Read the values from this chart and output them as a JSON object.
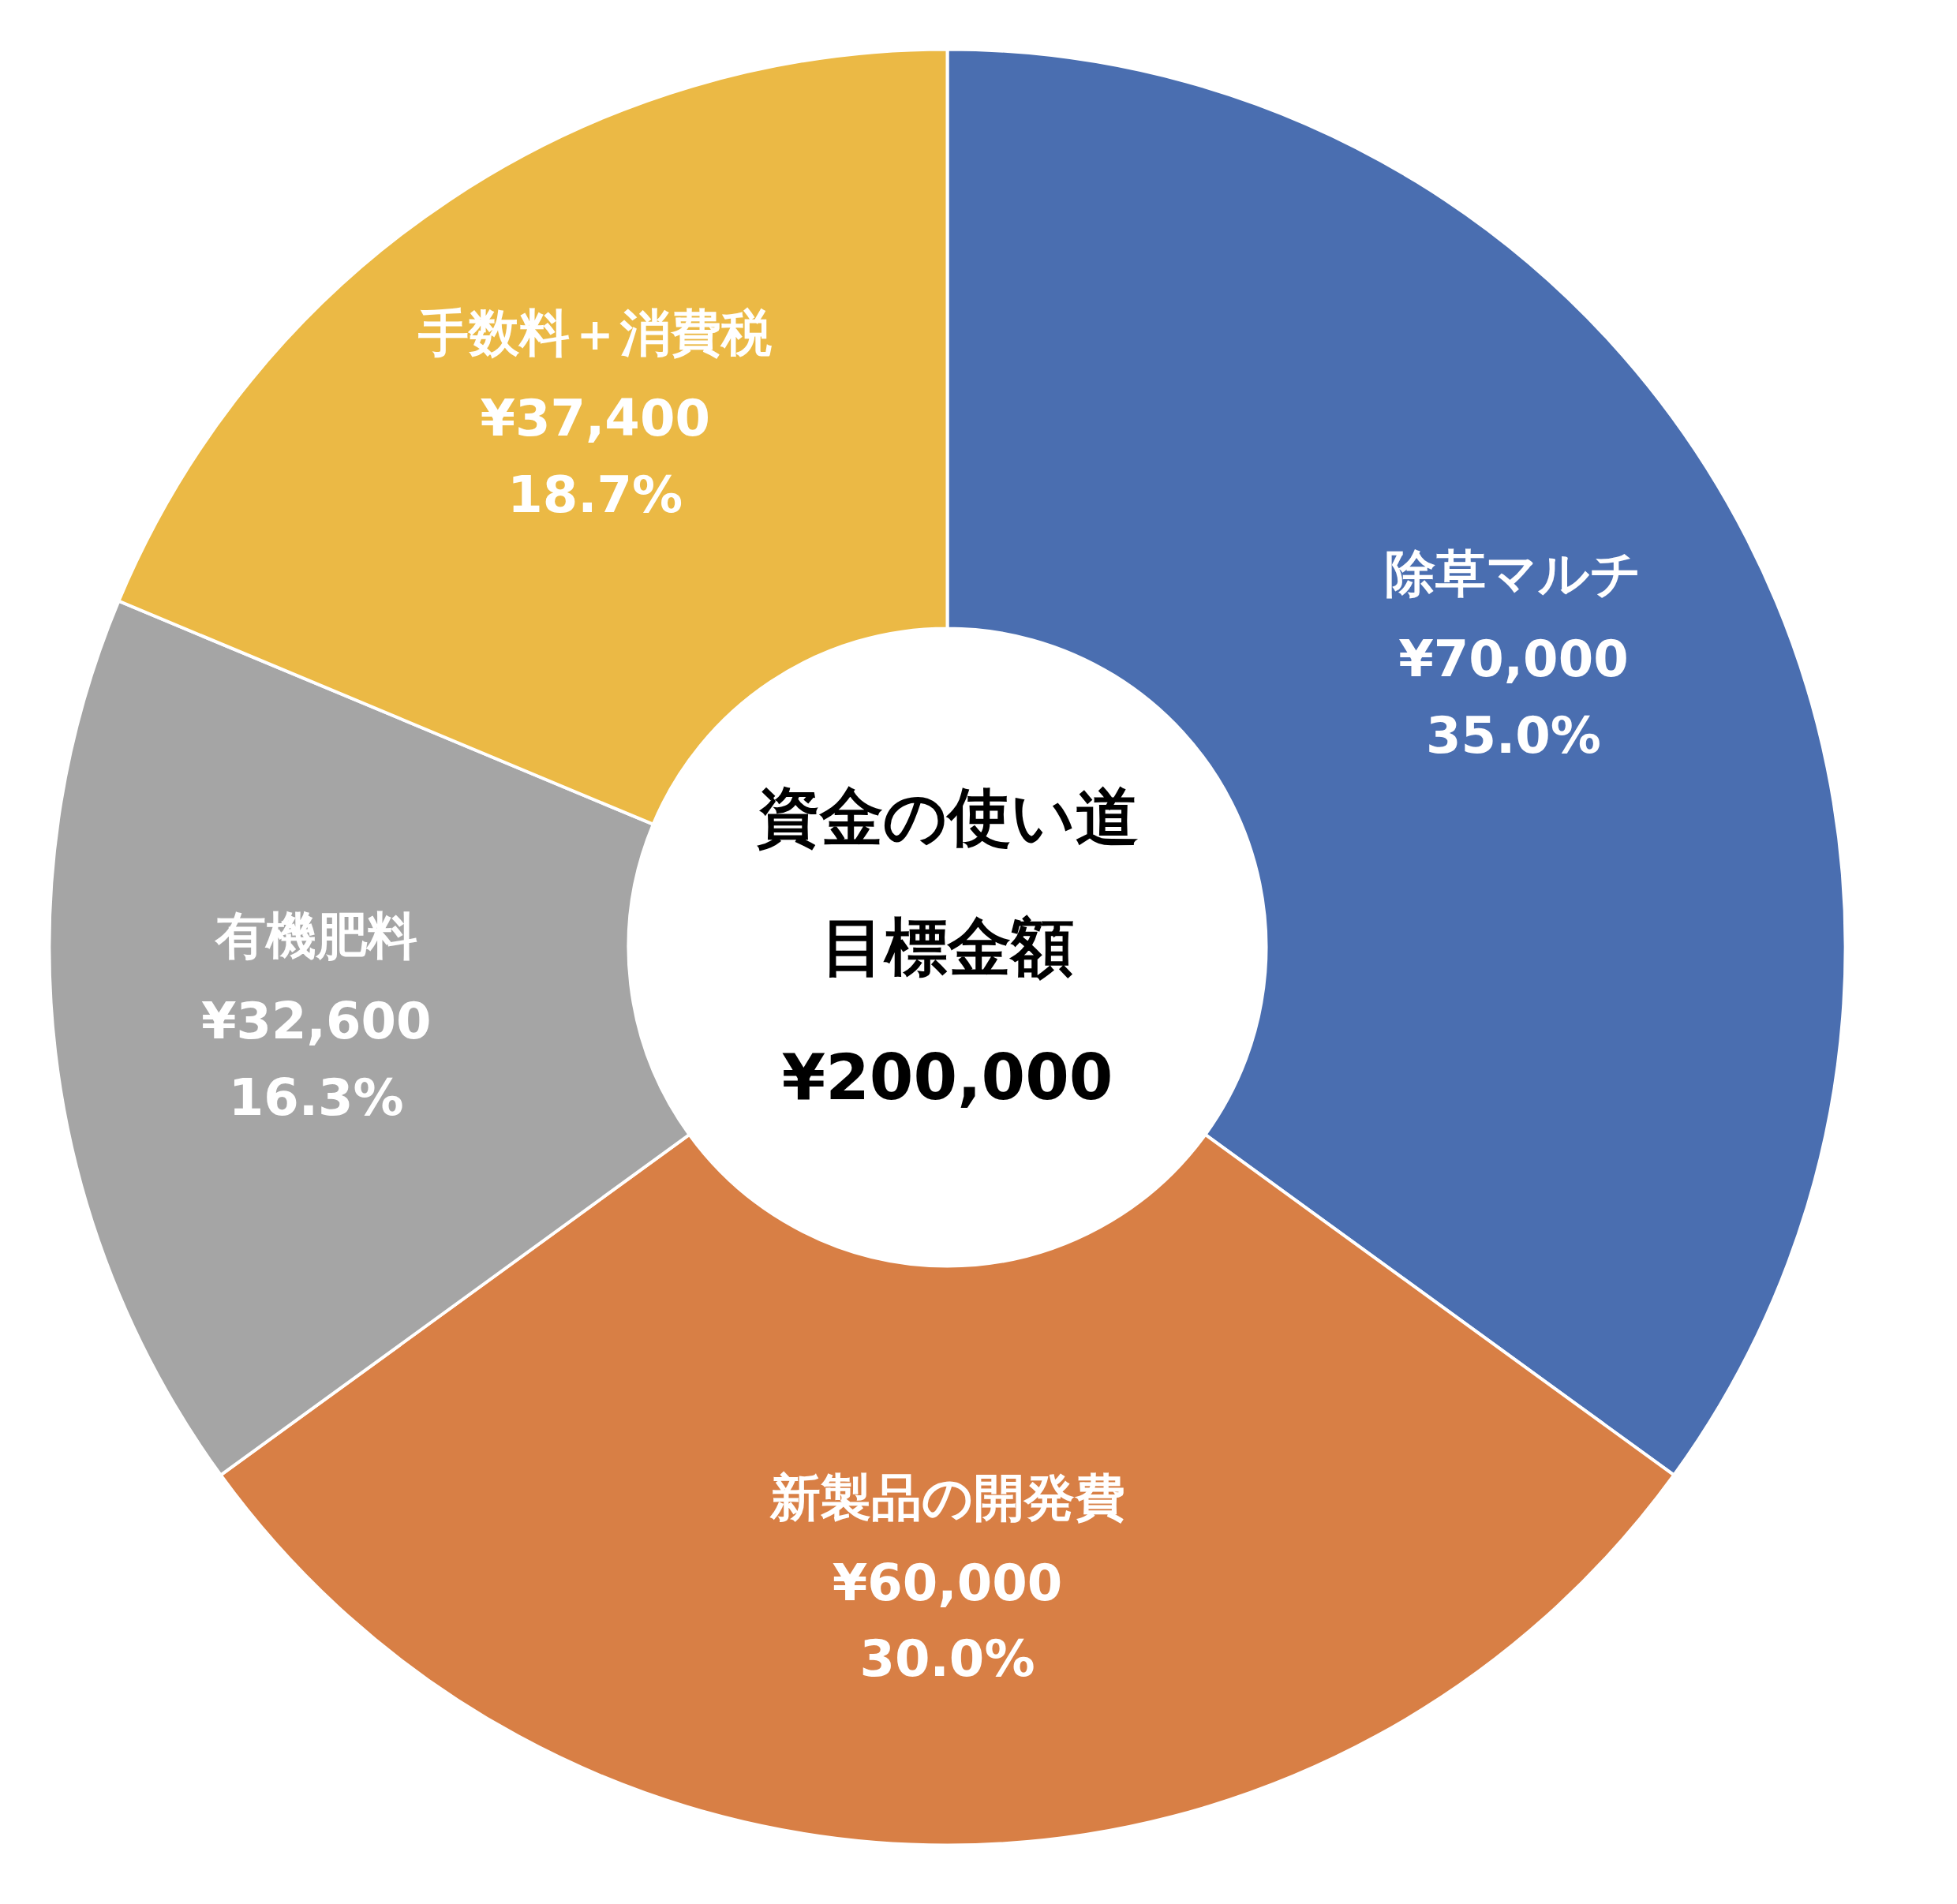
{
  "chart_data": {
    "type": "donut",
    "title": "資金の使い道",
    "subtitle": "目標金額",
    "annotations": [
      "¥200,000"
    ],
    "categories": [
      "除草マルチ",
      "新製品の開発費",
      "有機肥料",
      "手数料＋消費税"
    ],
    "values": [
      70000,
      60000,
      32600,
      37400
    ],
    "colors": [
      "#4a6eb0",
      "#d87f45",
      "#a5a5a5",
      "#ebb945"
    ],
    "value_labels": [
      "¥70,000\n35.0%",
      "¥60,000\n30.0%",
      "¥32,600\n16.3%",
      "¥37,400\n18.7%"
    ]
  }
}
